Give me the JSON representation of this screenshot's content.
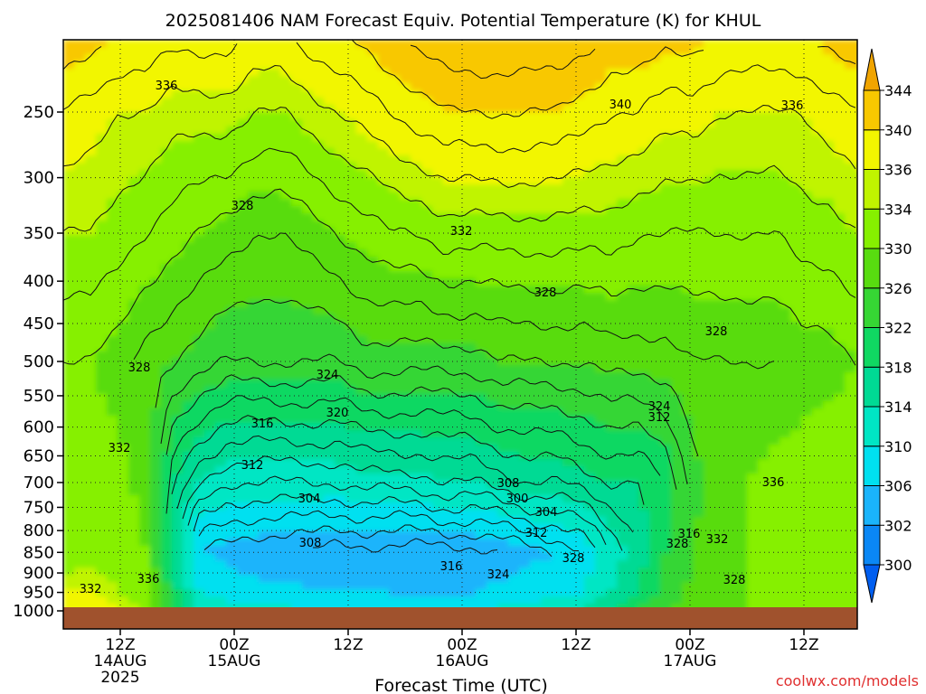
{
  "chart_data": {
    "type": "heatmap",
    "title": "2025081406 NAM Forecast Equiv. Potential Temperature (K) for KHUL",
    "xlabel": "Forecast Time (UTC)",
    "ylabel": "",
    "y_axis": {
      "scale": "log-pressure",
      "ylim": [
        1000,
        200
      ],
      "ticks": [
        250,
        300,
        350,
        400,
        450,
        500,
        550,
        600,
        650,
        700,
        750,
        800,
        850,
        900,
        950,
        1000
      ],
      "tick_labels": [
        "250",
        "300",
        "350",
        "400",
        "450",
        "500",
        "550",
        "600",
        "650",
        "700",
        "750",
        "800",
        "850",
        "900",
        "950",
        "1000"
      ]
    },
    "x_axis": {
      "unit": "hours_from_init",
      "xlim": [
        0,
        84
      ],
      "ticks": [
        {
          "hour": 6,
          "lines": [
            "12Z",
            "14AUG",
            "2025"
          ]
        },
        {
          "hour": 18,
          "lines": [
            "00Z",
            "15AUG"
          ]
        },
        {
          "hour": 30,
          "lines": [
            "12Z"
          ]
        },
        {
          "hour": 42,
          "lines": [
            "00Z",
            "16AUG"
          ]
        },
        {
          "hour": 54,
          "lines": [
            "12Z"
          ]
        },
        {
          "hour": 66,
          "lines": [
            "00Z",
            "17AUG"
          ]
        },
        {
          "hour": 78,
          "lines": [
            "12Z"
          ]
        }
      ]
    },
    "grid": true,
    "colorbar": {
      "unit": "K",
      "placement": "right",
      "levels": [
        300,
        302,
        306,
        310,
        314,
        318,
        322,
        326,
        330,
        334,
        336,
        340,
        344
      ],
      "labels": [
        "300",
        "302",
        "306",
        "310",
        "314",
        "318",
        "322",
        "326",
        "330",
        "334",
        "336",
        "340",
        "344"
      ],
      "colors": [
        "#005ef0",
        "#0a87f5",
        "#1ab4fb",
        "#00e0f0",
        "#00e6c4",
        "#00da94",
        "#10d862",
        "#36d634",
        "#58dc10",
        "#86f000",
        "#c0f400",
        "#f2f600",
        "#f8c800",
        "#f0a400"
      ]
    },
    "field_by_level": [
      {
        "pressure": 250,
        "values": [
          338,
          337,
          336,
          336,
          335,
          335,
          335,
          334,
          334,
          335,
          336,
          337,
          338,
          339,
          340,
          340,
          340,
          340,
          340,
          339,
          338,
          338,
          337,
          337,
          336,
          336,
          336,
          336,
          337,
          338
        ]
      },
      {
        "pressure": 350,
        "values": [
          334,
          334,
          333,
          332,
          331,
          330,
          329,
          328,
          328,
          329,
          330,
          331,
          332,
          332,
          333,
          333,
          333,
          333,
          333,
          333,
          333,
          332,
          332,
          332,
          332,
          332,
          332,
          333,
          333,
          334
        ]
      },
      {
        "pressure": 500,
        "values": [
          330,
          330,
          329,
          327,
          326,
          325,
          324,
          324,
          324,
          324,
          324,
          325,
          325,
          325,
          325,
          325,
          326,
          326,
          326,
          326,
          327,
          327,
          327,
          328,
          328,
          328,
          328,
          329,
          329,
          330
        ]
      },
      {
        "pressure": 700,
        "values": [
          331,
          331,
          331,
          329,
          318,
          314,
          312,
          312,
          312,
          312,
          312,
          313,
          313,
          313,
          314,
          314,
          315,
          316,
          316,
          317,
          318,
          318,
          320,
          325,
          328,
          330,
          331,
          331,
          332,
          332
        ]
      },
      {
        "pressure": 850,
        "values": [
          332,
          333,
          332,
          330,
          316,
          306,
          305,
          304,
          304,
          304,
          303,
          303,
          303,
          303,
          303,
          303,
          304,
          305,
          306,
          308,
          312,
          316,
          322,
          326,
          328,
          330,
          331,
          331,
          332,
          332
        ]
      },
      {
        "pressure": 950,
        "values": [
          336,
          336,
          334,
          332,
          320,
          310,
          308,
          307,
          307,
          306,
          306,
          306,
          306,
          305,
          305,
          306,
          307,
          308,
          309,
          310,
          314,
          318,
          324,
          327,
          328,
          330,
          331,
          331,
          332,
          332
        ]
      },
      {
        "pressure": 1000,
        "values": [
          338,
          338,
          336,
          334,
          324,
          314,
          312,
          311,
          311,
          310,
          310,
          310,
          310,
          309,
          309,
          310,
          311,
          312,
          313,
          314,
          318,
          322,
          326,
          328,
          329,
          330,
          331,
          331,
          332,
          332
        ]
      }
    ],
    "contour_labels": [
      "336",
      "340",
      "336",
      "328",
      "332",
      "328",
      "328",
      "328",
      "324",
      "320",
      "316",
      "312",
      "308",
      "304",
      "300",
      "304",
      "308",
      "312",
      "316",
      "324",
      "328",
      "324",
      "312",
      "316",
      "328",
      "332",
      "336",
      "328",
      "332"
    ],
    "ground_color": "#a0522d",
    "watermark": "coolwx.com/models"
  }
}
